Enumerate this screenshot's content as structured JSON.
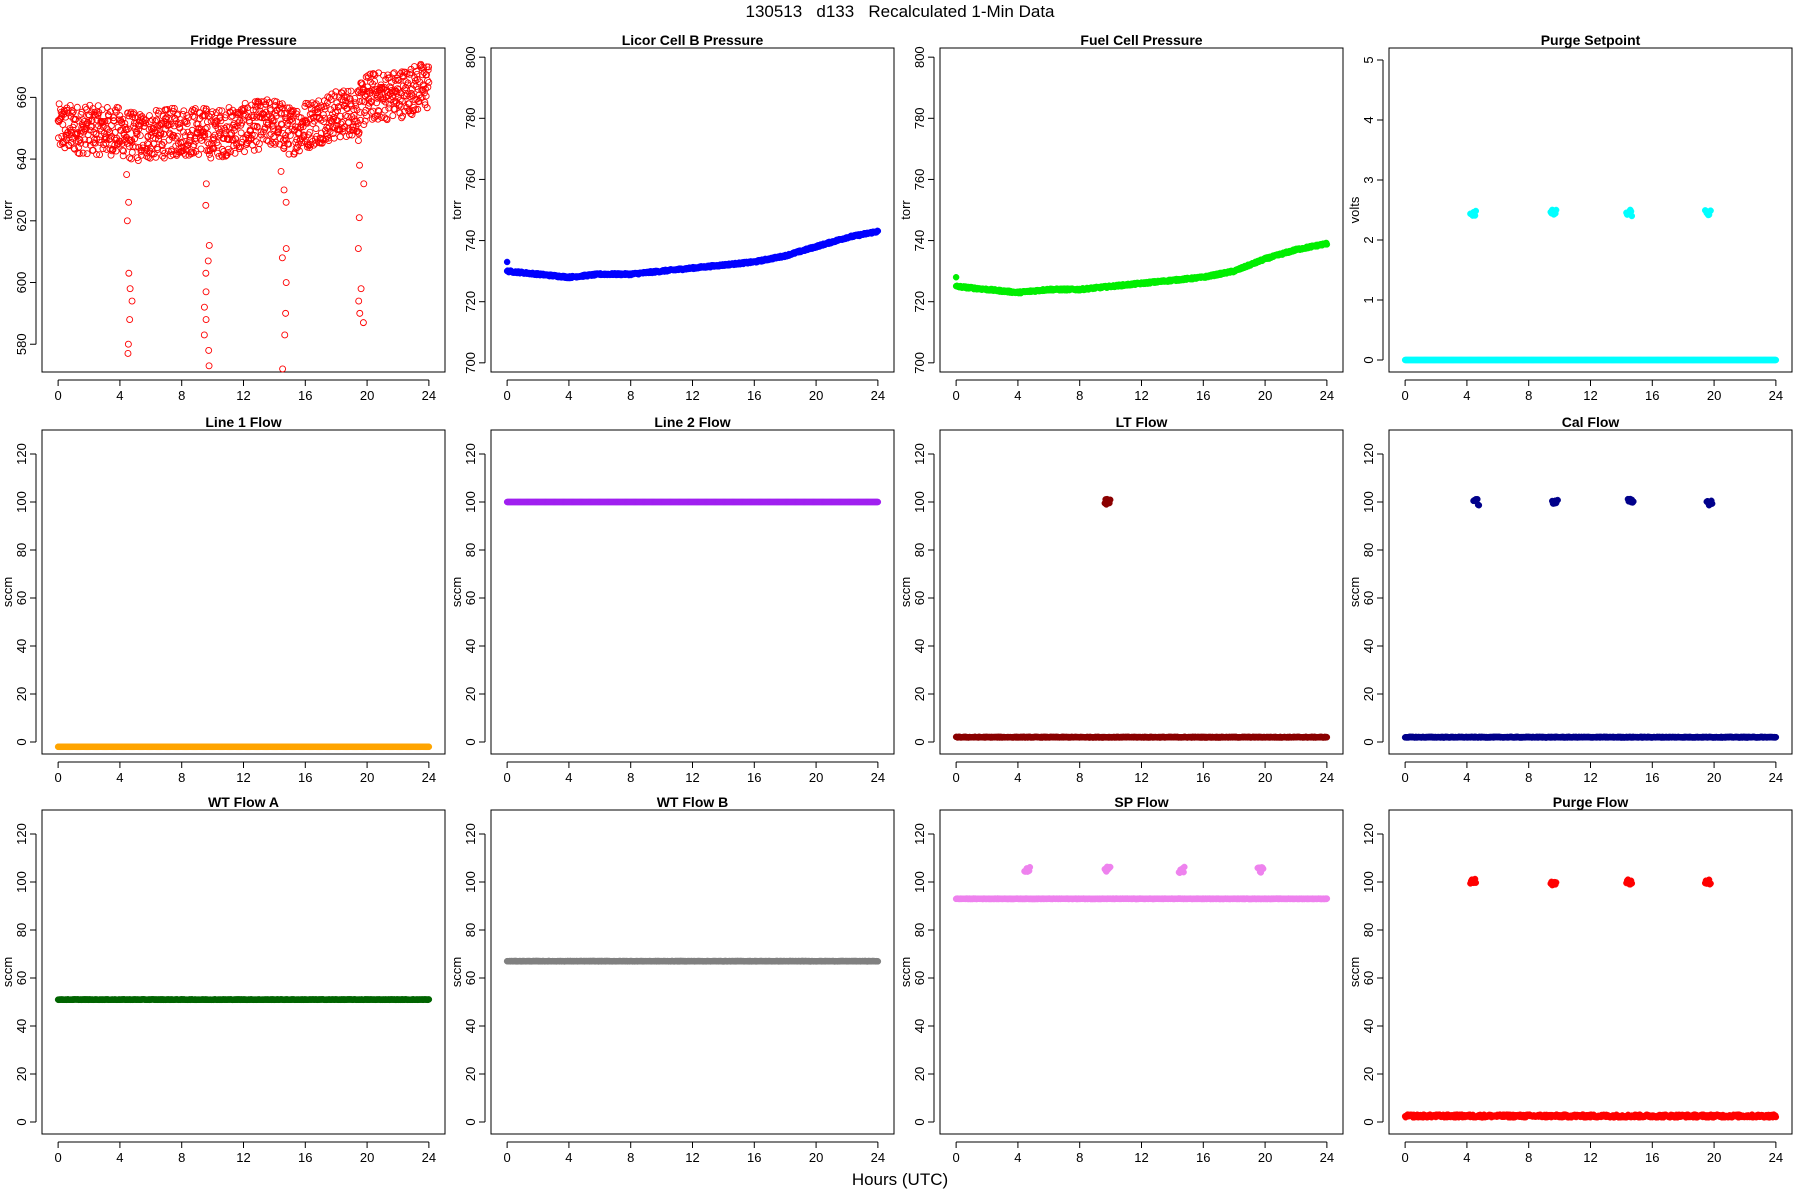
{
  "page": {
    "title": "130513   d133   Recalculated 1-Min Data",
    "xlabel": "Hours (UTC)"
  },
  "chart_data": [
    {
      "id": "fridge",
      "type": "scatter",
      "title": "Fridge Pressure",
      "ylabel": "torr",
      "color": "#ff0000",
      "marker": "open",
      "xlim": [
        0,
        24
      ],
      "xticks": [
        0,
        4,
        8,
        12,
        16,
        20,
        24
      ],
      "ylim": [
        571,
        676
      ],
      "yticks": [
        580,
        600,
        620,
        640,
        660
      ],
      "trend": [
        [
          0,
          650
        ],
        [
          4,
          649
        ],
        [
          5,
          647
        ],
        [
          8,
          649
        ],
        [
          9.5,
          649
        ],
        [
          10,
          648
        ],
        [
          12,
          650
        ],
        [
          14,
          652
        ],
        [
          15,
          649
        ],
        [
          17,
          653
        ],
        [
          19.5,
          656
        ],
        [
          20,
          660
        ],
        [
          22,
          661
        ],
        [
          24,
          664
        ]
      ],
      "spread": 16,
      "dips": [
        {
          "x": 4.6,
          "y": [
            635,
            626,
            620,
            603,
            598,
            594,
            588,
            580,
            577
          ]
        },
        {
          "x": 9.6,
          "y": [
            632,
            625,
            612,
            607,
            603,
            597,
            592,
            588,
            583,
            578,
            573
          ]
        },
        {
          "x": 14.6,
          "y": [
            636,
            630,
            626,
            611,
            608,
            600,
            590,
            583,
            572
          ]
        },
        {
          "x": 19.6,
          "y": [
            646,
            638,
            632,
            621,
            611,
            598,
            594,
            590,
            587
          ]
        }
      ]
    },
    {
      "id": "licor",
      "type": "scatter",
      "title": "Licor Cell B Pressure",
      "ylabel": "torr",
      "color": "#0000ff",
      "marker": "filled",
      "xlim": [
        0,
        24
      ],
      "xticks": [
        0,
        4,
        8,
        12,
        16,
        20,
        24
      ],
      "ylim": [
        697,
        803
      ],
      "yticks": [
        700,
        720,
        740,
        760,
        780,
        800
      ],
      "trend": [
        [
          0,
          730
        ],
        [
          2,
          729
        ],
        [
          4,
          728
        ],
        [
          6,
          729
        ],
        [
          8,
          729
        ],
        [
          10,
          730
        ],
        [
          12,
          731
        ],
        [
          14,
          732
        ],
        [
          16,
          733
        ],
        [
          18,
          735
        ],
        [
          20,
          738
        ],
        [
          22,
          741
        ],
        [
          24,
          743
        ]
      ],
      "spread": 0.6,
      "extra": [
        {
          "x": 0,
          "y": 733
        }
      ]
    },
    {
      "id": "fuel",
      "type": "scatter",
      "title": "Fuel Cell Pressure",
      "ylabel": "torr",
      "color": "#00ee00",
      "marker": "filled",
      "xlim": [
        0,
        24
      ],
      "xticks": [
        0,
        4,
        8,
        12,
        16,
        20,
        24
      ],
      "ylim": [
        697,
        803
      ],
      "yticks": [
        700,
        720,
        740,
        760,
        780,
        800
      ],
      "trend": [
        [
          0,
          725
        ],
        [
          2,
          724
        ],
        [
          4,
          723
        ],
        [
          6,
          724
        ],
        [
          8,
          724
        ],
        [
          10,
          725
        ],
        [
          12,
          726
        ],
        [
          14,
          727
        ],
        [
          16,
          728
        ],
        [
          18,
          730
        ],
        [
          20,
          734
        ],
        [
          22,
          737
        ],
        [
          24,
          739
        ]
      ],
      "spread": 0.6,
      "extra": [
        {
          "x": 0,
          "y": 728
        }
      ]
    },
    {
      "id": "purge_sp",
      "type": "scatter",
      "title": "Purge Setpoint",
      "ylabel": "volts",
      "color": "#00ffff",
      "marker": "filled",
      "xlim": [
        0,
        24
      ],
      "xticks": [
        0,
        4,
        8,
        12,
        16,
        20,
        24
      ],
      "ylim": [
        -0.2,
        5.2
      ],
      "yticks": [
        0,
        1,
        2,
        3,
        4,
        5
      ],
      "trend": [
        [
          0,
          0
        ],
        [
          24,
          0
        ]
      ],
      "spread": 0,
      "clusters": [
        {
          "x": 4.4,
          "y": 2.45
        },
        {
          "x": 9.6,
          "y": 2.45
        },
        {
          "x": 14.5,
          "y": 2.45
        },
        {
          "x": 19.6,
          "y": 2.45
        }
      ]
    },
    {
      "id": "line1",
      "type": "scatter",
      "title": "Line 1 Flow",
      "ylabel": "sccm",
      "color": "#ffa500",
      "marker": "filled",
      "xlim": [
        0,
        24
      ],
      "xticks": [
        0,
        4,
        8,
        12,
        16,
        20,
        24
      ],
      "ylim": [
        -5,
        130
      ],
      "yticks": [
        0,
        20,
        40,
        60,
        80,
        100,
        120
      ],
      "trend": [
        [
          0,
          -2
        ],
        [
          24,
          -2
        ]
      ],
      "spread": 0
    },
    {
      "id": "line2",
      "type": "scatter",
      "title": "Line 2 Flow",
      "ylabel": "sccm",
      "color": "#a020f0",
      "marker": "filled",
      "xlim": [
        0,
        24
      ],
      "xticks": [
        0,
        4,
        8,
        12,
        16,
        20,
        24
      ],
      "ylim": [
        -5,
        130
      ],
      "yticks": [
        0,
        20,
        40,
        60,
        80,
        100,
        120
      ],
      "trend": [
        [
          0,
          100
        ],
        [
          24,
          100
        ]
      ],
      "spread": 0
    },
    {
      "id": "lt",
      "type": "scatter",
      "title": "LT Flow",
      "ylabel": "sccm",
      "color": "#8b0000",
      "marker": "filled",
      "xlim": [
        0,
        24
      ],
      "xticks": [
        0,
        4,
        8,
        12,
        16,
        20,
        24
      ],
      "ylim": [
        -5,
        130
      ],
      "yticks": [
        0,
        20,
        40,
        60,
        80,
        100,
        120
      ],
      "trend": [
        [
          0,
          2
        ],
        [
          24,
          2
        ]
      ],
      "spread": 0.3,
      "clusters": [
        {
          "x": 9.8,
          "y": 100
        }
      ]
    },
    {
      "id": "cal",
      "type": "scatter",
      "title": "Cal Flow",
      "ylabel": "sccm",
      "color": "#00008b",
      "marker": "filled",
      "xlim": [
        0,
        24
      ],
      "xticks": [
        0,
        4,
        8,
        12,
        16,
        20,
        24
      ],
      "ylim": [
        -5,
        130
      ],
      "yticks": [
        0,
        20,
        40,
        60,
        80,
        100,
        120
      ],
      "trend": [
        [
          0,
          2
        ],
        [
          24,
          2
        ]
      ],
      "spread": 0.3,
      "clusters": [
        {
          "x": 4.6,
          "y": 100
        },
        {
          "x": 9.7,
          "y": 100
        },
        {
          "x": 14.6,
          "y": 100
        },
        {
          "x": 19.7,
          "y": 100
        }
      ]
    },
    {
      "id": "wta",
      "type": "scatter",
      "title": "WT Flow A",
      "ylabel": "sccm",
      "color": "#006400",
      "marker": "filled",
      "xlim": [
        0,
        24
      ],
      "xticks": [
        0,
        4,
        8,
        12,
        16,
        20,
        24
      ],
      "ylim": [
        -5,
        130
      ],
      "yticks": [
        0,
        20,
        40,
        60,
        80,
        100,
        120
      ],
      "trend": [
        [
          0,
          51
        ],
        [
          24,
          51
        ]
      ],
      "spread": 0.2
    },
    {
      "id": "wtb",
      "type": "scatter",
      "title": "WT Flow B",
      "ylabel": "sccm",
      "color": "#808080",
      "marker": "filled",
      "xlim": [
        0,
        24
      ],
      "xticks": [
        0,
        4,
        8,
        12,
        16,
        20,
        24
      ],
      "ylim": [
        -5,
        130
      ],
      "yticks": [
        0,
        20,
        40,
        60,
        80,
        100,
        120
      ],
      "trend": [
        [
          0,
          67
        ],
        [
          24,
          67
        ]
      ],
      "spread": 0.2
    },
    {
      "id": "sp",
      "type": "scatter",
      "title": "SP Flow",
      "ylabel": "sccm",
      "color": "#ee82ee",
      "marker": "filled",
      "xlim": [
        0,
        24
      ],
      "xticks": [
        0,
        4,
        8,
        12,
        16,
        20,
        24
      ],
      "ylim": [
        -5,
        130
      ],
      "yticks": [
        0,
        20,
        40,
        60,
        80,
        100,
        120
      ],
      "trend": [
        [
          0,
          93
        ],
        [
          24,
          93
        ]
      ],
      "spread": 0.2,
      "clusters": [
        {
          "x": 4.6,
          "y": 105
        },
        {
          "x": 9.8,
          "y": 105
        },
        {
          "x": 14.6,
          "y": 105
        },
        {
          "x": 19.7,
          "y": 105
        }
      ]
    },
    {
      "id": "purge_flow",
      "type": "scatter",
      "title": "Purge Flow",
      "ylabel": "sccm",
      "color": "#ff0000",
      "marker": "filled",
      "xlim": [
        0,
        24
      ],
      "xticks": [
        0,
        4,
        8,
        12,
        16,
        20,
        24
      ],
      "ylim": [
        -5,
        130
      ],
      "yticks": [
        0,
        20,
        40,
        60,
        80,
        100,
        120
      ],
      "trend": [
        [
          0,
          2.5
        ],
        [
          24,
          2.5
        ]
      ],
      "spread": 1.2,
      "clusters": [
        {
          "x": 4.4,
          "y": 100
        },
        {
          "x": 9.6,
          "y": 100
        },
        {
          "x": 14.5,
          "y": 100
        },
        {
          "x": 19.6,
          "y": 100
        }
      ]
    }
  ]
}
